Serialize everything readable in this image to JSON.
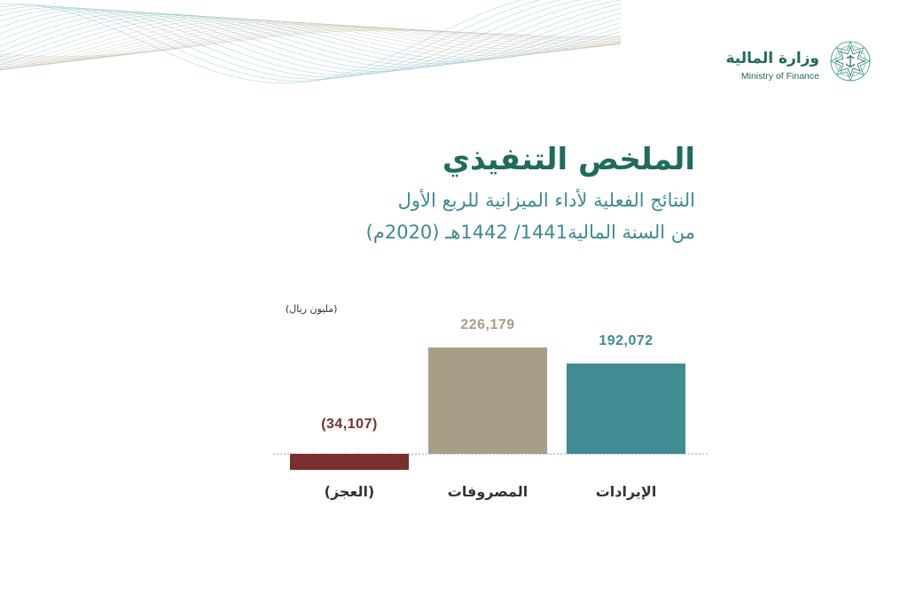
{
  "logo": {
    "arabic": "وزارة المالية",
    "english": "Ministry of Finance"
  },
  "page_title": "الملخص التنفيذي",
  "subtitle_line1": "النتائج الفعلية لأداء الميزانية للربع الأول",
  "subtitle_line2": "من السنة المالية1441/ 1442هـ (2020م)",
  "colors": {
    "primary": "#1f6b5e",
    "revenue": "#418b92",
    "expenses": "#a89e88",
    "deficit": "#7a2e2e"
  },
  "chart_data": {
    "type": "bar",
    "unit_label": "(مليون ريال)",
    "categories": [
      "الإيرادات",
      "المصروفات",
      "(العجز)"
    ],
    "values": [
      192072,
      226179,
      -34107
    ],
    "value_labels": [
      "192,072",
      "226,179",
      "(34,107)"
    ],
    "colors": [
      "#418b92",
      "#a89e88",
      "#7a2e2e"
    ],
    "ylim": [
      -34107,
      226179
    ],
    "grid": false,
    "legend": "none",
    "xlabel": "",
    "ylabel": ""
  }
}
